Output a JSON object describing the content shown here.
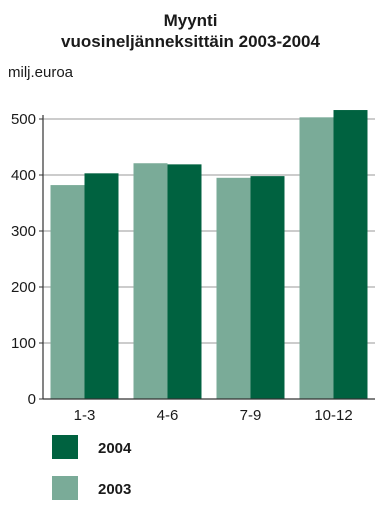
{
  "chart_data": {
    "type": "bar",
    "title": [
      "Myynti",
      "vuosineljänneksittäin 2003-2004"
    ],
    "ylabel": "milj.euroa",
    "xlabel": "",
    "categories": [
      "1-3",
      "4-6",
      "7-9",
      "10-12"
    ],
    "ylim": [
      0,
      500
    ],
    "yticks": [
      0,
      100,
      200,
      300,
      400,
      500
    ],
    "grid": true,
    "legend_position": "bottom-left",
    "series": [
      {
        "name": "2003",
        "color": "#7aab98",
        "values": [
          382,
          421,
          395,
          503
        ]
      },
      {
        "name": "2004",
        "color": "#006240",
        "values": [
          403,
          419,
          398,
          516
        ]
      }
    ],
    "legend_order": [
      "2004",
      "2003"
    ]
  }
}
